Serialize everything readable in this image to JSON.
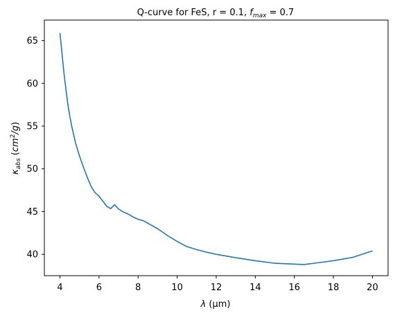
{
  "figure": {
    "title_main": "Q-curve for FeS, r = 0.1, ",
    "title_fsym": "f",
    "title_fsub": "max",
    "title_tail": " = 0.7",
    "xlabel_sym": "λ",
    "xlabel_unit": " (μm)",
    "ylabel_sym": "κ",
    "ylabel_sub": "abs",
    "ylabel_unit_open": " (",
    "ylabel_unit_cm": "cm",
    "ylabel_unit_exp": "2",
    "ylabel_unit_g": "/g",
    "ylabel_unit_close": ")"
  },
  "chart_data": {
    "type": "line",
    "title": "Q-curve for FeS, r = 0.1, f_max = 0.7",
    "xlabel": "λ (μm)",
    "ylabel": "κ_abs (cm^2/g)",
    "xlim": [
      3.2,
      20.8
    ],
    "ylim": [
      37.5,
      67.4
    ],
    "x_ticks": [
      4,
      6,
      8,
      10,
      12,
      14,
      16,
      18,
      20
    ],
    "y_ticks": [
      40,
      45,
      50,
      55,
      60,
      65
    ],
    "grid": false,
    "line_color": "#1f77b4",
    "series": [
      {
        "x": [
          4.0,
          4.1,
          4.2,
          4.3,
          4.4,
          4.5,
          4.6,
          4.8,
          5.0,
          5.2,
          5.4,
          5.6,
          5.8,
          6.0,
          6.2,
          6.4,
          6.6,
          6.8,
          7.0,
          7.2,
          7.5,
          7.8,
          8.0,
          8.3,
          8.6,
          9.0,
          9.5,
          10.0,
          10.5,
          11.0,
          11.5,
          12.0,
          13.0,
          14.0,
          15.0,
          16.0,
          16.5,
          17.0,
          18.0,
          19.0,
          20.0
        ],
        "y": [
          65.9,
          63.6,
          61.3,
          59.4,
          57.6,
          56.2,
          55.0,
          53.0,
          51.5,
          50.2,
          49.0,
          47.9,
          47.2,
          46.8,
          46.2,
          45.6,
          45.35,
          45.8,
          45.3,
          45.0,
          44.7,
          44.3,
          44.1,
          43.9,
          43.5,
          43.0,
          42.2,
          41.5,
          40.9,
          40.55,
          40.25,
          40.0,
          39.6,
          39.25,
          38.95,
          38.85,
          38.8,
          38.95,
          39.25,
          39.65,
          40.4
        ]
      }
    ]
  }
}
